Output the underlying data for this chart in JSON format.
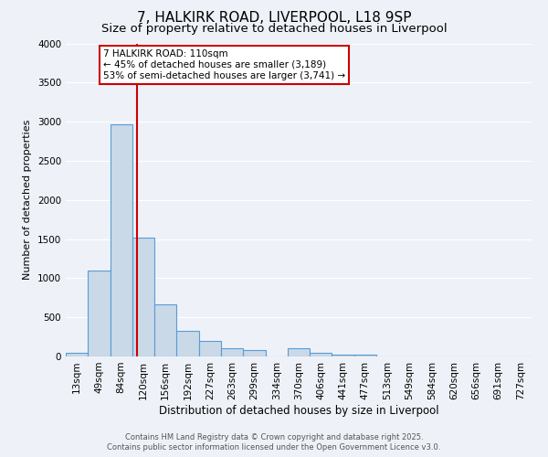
{
  "title_line1": "7, HALKIRK ROAD, LIVERPOOL, L18 9SP",
  "title_line2": "Size of property relative to detached houses in Liverpool",
  "xlabel": "Distribution of detached houses by size in Liverpool",
  "ylabel": "Number of detached properties",
  "categories": [
    "13sqm",
    "49sqm",
    "84sqm",
    "120sqm",
    "156sqm",
    "192sqm",
    "227sqm",
    "263sqm",
    "299sqm",
    "334sqm",
    "370sqm",
    "406sqm",
    "441sqm",
    "477sqm",
    "513sqm",
    "549sqm",
    "584sqm",
    "620sqm",
    "656sqm",
    "691sqm",
    "727sqm"
  ],
  "values": [
    50,
    1100,
    2970,
    1520,
    660,
    330,
    200,
    100,
    80,
    0,
    100,
    50,
    20,
    20,
    0,
    0,
    0,
    0,
    0,
    0,
    0
  ],
  "bar_color": "#c9d9e8",
  "bar_edge_color": "#5b9bd5",
  "vline_color": "#cc0000",
  "vline_pos": 2.72,
  "ylim": [
    0,
    4000
  ],
  "yticks": [
    0,
    500,
    1000,
    1500,
    2000,
    2500,
    3000,
    3500,
    4000
  ],
  "annotation_title": "7 HALKIRK ROAD: 110sqm",
  "annotation_line2": "← 45% of detached houses are smaller (3,189)",
  "annotation_line3": "53% of semi-detached houses are larger (3,741) →",
  "annotation_box_color": "#ffffff",
  "annotation_box_edge": "#cc0000",
  "footer1": "Contains HM Land Registry data © Crown copyright and database right 2025.",
  "footer2": "Contains public sector information licensed under the Open Government Licence v3.0.",
  "background_color": "#eef2f8",
  "grid_color": "#ffffff",
  "title_fontsize": 11,
  "subtitle_fontsize": 9.5,
  "tick_fontsize": 7.5,
  "ylabel_fontsize": 8,
  "xlabel_fontsize": 8.5
}
